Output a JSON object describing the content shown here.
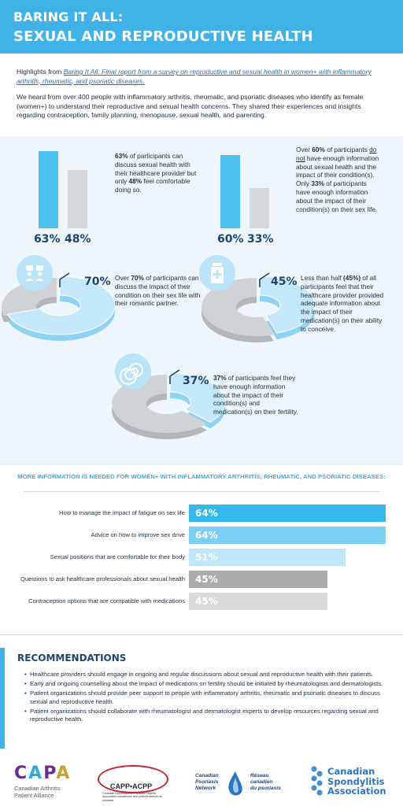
{
  "header": {
    "title_line1": "BARING IT ALL:",
    "title_line2": "SEXUAL AND REPRODUCTIVE HEALTH"
  },
  "intro": {
    "highlights_prefix": "Highlights from ",
    "report_title": "Baring It All: Final report from a survey on reproductive and sexual health in women+ with inflammatory arthritis, rheumatic, and psoriatic diseases.",
    "paragraph2": "We heard from over 400 people with inflammatory arthritis, rheumatic, and psoriatic diseases who identify as female (women+) to understand their reproductive and sexual health concerns. They shared their experiences and insights regarding contraception, family planning, menopause, sexual health, and parenting."
  },
  "stats": {
    "comfort": {
      "bar1_label": "63%",
      "bar1_value": 63,
      "bar2_label": "48%",
      "bar2_value": 48,
      "t1": "63%",
      "t2": " of participants can discuss sexual health with their healthcare provider but only ",
      "t3": "48%",
      "t4": " feel comfortable doing so."
    },
    "information": {
      "bar1_label": "60%",
      "bar1_value": 60,
      "bar2_label": "33%",
      "bar2_value": 33,
      "t1": "Over ",
      "t2": "60%",
      "t3": " of participants ",
      "t4": "do not",
      "t5": " have enough information about sexual health and the impact of their condition(s). Only ",
      "t6": "33%",
      "t7": " of participants have enough information about the impact of their condition(s) on their sex life."
    },
    "partner": {
      "percent_label": "70%",
      "value": 70,
      "t1": "Over ",
      "t2": "70%",
      "t3": " of participants can discuss the impact of their condition on their sex life with their romantic partner."
    },
    "medication": {
      "percent_label": "45%",
      "value": 45,
      "t1": "Less than half ",
      "t2": "(45%)",
      "t3": " of all participants feel that their healthcare provider provided adequate information about the impact of their medication(s) on their ability to conceive."
    },
    "fertility": {
      "percent_label": "37%",
      "value": 37,
      "t1": "37%",
      "t2": " of participants feel they have enough information about the impact of their condition(s) and medication(s) on their fertility."
    }
  },
  "needs": {
    "title": "MORE INFORMATION IS NEEDED FOR WOMEN+ WITH INFLAMMATORY ARTHRITIS, RHEUMATIC, AND PSORIATIC DISEASES:",
    "items": [
      {
        "label": "How to manage the impact of fatigue on sex life",
        "value_label": "64%",
        "value": 64,
        "color": "#35b9ec"
      },
      {
        "label": "Advice on how to improve sex drive",
        "value_label": "64%",
        "value": 64,
        "color": "#7dcff3"
      },
      {
        "label": "Sexual positions that are comfortable for their body",
        "value_label": "51%",
        "value": 51,
        "color": "#bfe5f8"
      },
      {
        "label": "Questions to ask healthcare professionals about sexual health",
        "value_label": "45%",
        "value": 45,
        "color": "#a9abad"
      },
      {
        "label": "Contraception options that are compatible with medications",
        "value_label": "45%",
        "value": 45,
        "color": "#d8d9da"
      }
    ]
  },
  "recommendations": {
    "title": "RECOMMENDATIONS",
    "items": [
      "Healthcare providers should engage in ongoing and regular discussions about sexual and reproductive health with their patients.",
      "Early and ongoing counselling about the impact of medications on fertility should be initiated by rheumatologists and dermatologists.",
      "Patient organizations should provide peer support to people with inflammatory arthritis, rheumatic and psoriatic diseases to discuss sexual and reproductive health.",
      "Patient organizations should collaborate with rheumatologist and dermatologist experts to develop resources regarding sexual and reproductive health."
    ]
  },
  "logos": {
    "capa": {
      "letters": [
        "C",
        "A",
        "P",
        "A"
      ],
      "line1": "Canadian Arthritis",
      "line2": "Patient Alliance"
    },
    "capp": {
      "name": "CAPP•ACPP",
      "subtitle": "Canadian Association of Psoriasis Patients Association canadienne des patients atteints de psoriasis"
    },
    "cpn": {
      "en1": "Canadian",
      "en2": "Psoriasis",
      "en3": "Network",
      "fr1": "Réseau",
      "fr2": "canadien",
      "fr3": "du psoriasis"
    },
    "csa": {
      "line1": "Canadian",
      "line2": "Spondylitis",
      "line3": "Association"
    }
  },
  "colors": {
    "header_bg": "#41b2e7",
    "navy": "#1c4670",
    "bar_blue": "#4ec0ee",
    "bar_grey": "#d5d8db",
    "donut_blue": "#c4e7f9",
    "donut_blue_edge": "#8fd2f2",
    "donut_grey": "#d0d3d6",
    "donut_grey_edge": "#b3b7bb",
    "capa_colors": [
      "#6a2c91",
      "#2ca7df",
      "#6a2c91",
      "#c9a227"
    ]
  },
  "icons": {
    "partner": "couple-icon",
    "medication": "medicine-bottle-icon",
    "fertility": "spiral-icon"
  }
}
